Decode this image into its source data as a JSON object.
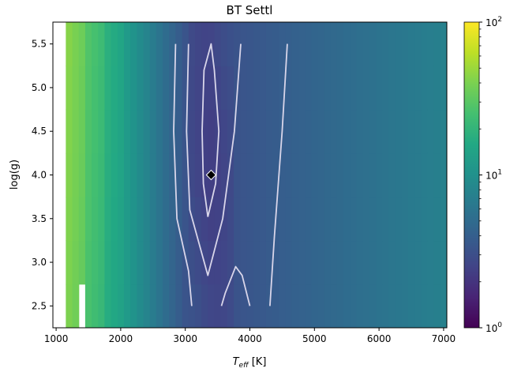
{
  "chart_data": {
    "type": "heatmap",
    "title": "BT Settl",
    "xlabel_main": "T",
    "xlabel_sub": "eff",
    "xlabel_unit": " [K]",
    "ylabel": "log(g)",
    "xlim": [
      950,
      7050
    ],
    "ylim": [
      2.25,
      5.75
    ],
    "x_ticks": [
      1000,
      2000,
      3000,
      4000,
      5000,
      6000,
      7000
    ],
    "x_tick_labels": [
      "1000",
      "2000",
      "3000",
      "4000",
      "5000",
      "6000",
      "7000"
    ],
    "y_ticks": [
      2.5,
      3.0,
      3.5,
      4.0,
      4.5,
      5.0,
      5.5
    ],
    "y_tick_labels": [
      "2.5",
      "3.0",
      "3.5",
      "4.0",
      "4.5",
      "5.0",
      "5.5"
    ],
    "colorbar": {
      "scale": "log",
      "range": [
        1,
        100
      ],
      "colormap": "viridis",
      "ticks": [
        {
          "value": 1,
          "base": "10",
          "exp": "0"
        },
        {
          "value": 10,
          "base": "10",
          "exp": "1"
        },
        {
          "value": 100,
          "base": "10",
          "exp": "2"
        }
      ]
    },
    "teff_start": 1200,
    "teff_step": 100,
    "logg_values": [
      2.5,
      3.0,
      3.5,
      4.0,
      4.5,
      5.0,
      5.5
    ],
    "best_fit": {
      "teff": 3400,
      "logg": 4.0
    },
    "contours": [
      [
        [
          3350,
          3.52
        ],
        [
          3280,
          3.9
        ],
        [
          3260,
          4.5
        ],
        [
          3290,
          5.2
        ],
        [
          3400,
          5.5
        ],
        [
          3450,
          5.2
        ],
        [
          3520,
          4.5
        ],
        [
          3470,
          3.9
        ],
        [
          3350,
          3.52
        ]
      ],
      [
        [
          2850,
          5.5
        ],
        [
          2820,
          4.5
        ],
        [
          2870,
          3.5
        ],
        [
          3050,
          2.9
        ],
        [
          3100,
          2.5
        ]
      ],
      [
        [
          3050,
          5.5
        ],
        [
          3020,
          4.5
        ],
        [
          3070,
          3.6
        ],
        [
          3350,
          2.85
        ],
        [
          3580,
          3.5
        ],
        [
          3760,
          4.5
        ],
        [
          3860,
          5.5
        ]
      ],
      [
        [
          3560,
          2.5
        ],
        [
          3620,
          2.65
        ],
        [
          3780,
          2.95
        ],
        [
          3880,
          2.85
        ],
        [
          4000,
          2.5
        ]
      ],
      [
        [
          4310,
          2.5
        ],
        [
          4380,
          3.3
        ],
        [
          4500,
          4.5
        ],
        [
          4580,
          5.5
        ]
      ]
    ]
  }
}
